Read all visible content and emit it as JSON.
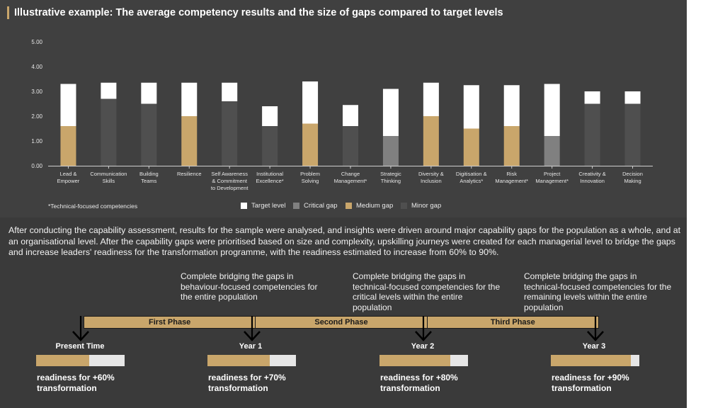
{
  "title": "Illustrative example: The average competency results and the size of gaps compared to target levels",
  "colors": {
    "accent": "#c9a66b",
    "target": "#ffffff",
    "critical": "#808080",
    "medium": "#c9a66b",
    "minor": "#4f4f4f",
    "background": "#404040"
  },
  "chart_data": {
    "type": "bar",
    "categories": [
      [
        "Lead &",
        "Empower"
      ],
      [
        "Communication",
        "Skills"
      ],
      [
        "Building",
        "Teams"
      ],
      [
        "Resilience"
      ],
      [
        "Self Awareness",
        "& Commitment",
        "to Development"
      ],
      [
        "Institutional",
        "Excellence*"
      ],
      [
        "Problem",
        "Solving"
      ],
      [
        "Change",
        "Management*"
      ],
      [
        "Strategic",
        "Thinking"
      ],
      [
        "Diversity &",
        "Inclusion"
      ],
      [
        "Digitisation &",
        "Analytics*"
      ],
      [
        "Risk",
        "Management*"
      ],
      [
        "Project",
        "Management*"
      ],
      [
        "Creativity &",
        "Innovation"
      ],
      [
        "Decision",
        "Making"
      ]
    ],
    "current": [
      1.6,
      2.7,
      2.5,
      2.0,
      2.6,
      1.6,
      1.7,
      1.6,
      1.2,
      2.0,
      1.5,
      1.6,
      1.2,
      2.5,
      2.5
    ],
    "target": [
      3.3,
      3.35,
      3.35,
      3.35,
      3.35,
      2.4,
      3.4,
      2.45,
      3.1,
      3.35,
      3.25,
      3.25,
      3.3,
      3.0,
      3.0
    ],
    "gap_type": [
      "medium",
      "minor",
      "minor",
      "medium",
      "minor",
      "minor",
      "medium",
      "minor",
      "critical",
      "medium",
      "medium",
      "medium",
      "critical",
      "minor",
      "minor"
    ],
    "yticks": [
      "0.00",
      "1.00",
      "2.00",
      "3.00",
      "4.00",
      "5.00"
    ],
    "ylim": [
      0,
      5
    ],
    "legend": [
      {
        "key": "target",
        "label": "Target level"
      },
      {
        "key": "critical",
        "label": "Critical gap"
      },
      {
        "key": "medium",
        "label": "Medium gap"
      },
      {
        "key": "minor",
        "label": "Minor gap"
      }
    ],
    "footnote": "*Technical-focused competencies"
  },
  "paragraph": "After conducting the capability assessment, results for the sample were analysed, and insights were driven around major capability gaps for the population as a whole, and at an organisational level. After the capability gaps were prioritised based on size and complexity, upskilling journeys were created for each managerial level to bridge the gaps and increase leaders' readiness for the transformation programme, with the readiness estimated to increase from 60% to 90%.",
  "phase_descriptions": [
    "Complete bridging the gaps in behaviour-focused competencies for the entire population",
    "Complete bridging the gaps in technical-focused competencies for the critical levels within the entire population",
    "Complete bridging the gaps in technical-focused competencies for the remaining levels within the entire population"
  ],
  "phases": [
    "First Phase",
    "Second Phase",
    "Third Phase"
  ],
  "milestones": [
    {
      "label": "Present Time",
      "readiness": 0.6,
      "text_line1": "readiness for +60%",
      "text_line2": "transformation"
    },
    {
      "label": "Year 1",
      "readiness": 0.7,
      "text_line1": "readiness for +70%",
      "text_line2": "transformation"
    },
    {
      "label": "Year 2",
      "readiness": 0.8,
      "text_line1": "readiness for +80%",
      "text_line2": "transformation"
    },
    {
      "label": "Year 3",
      "readiness": 0.9,
      "text_line1": "readiness for +90%",
      "text_line2": "transformation"
    }
  ]
}
